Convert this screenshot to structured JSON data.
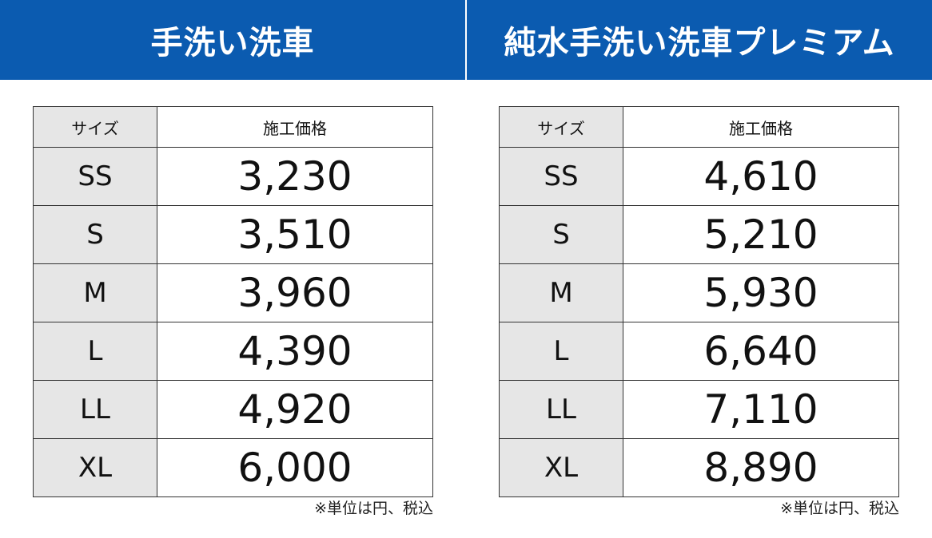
{
  "panels": [
    {
      "title": "手洗い洗車",
      "table": {
        "header": [
          "サイズ",
          "施工価格"
        ],
        "rows": [
          [
            "SS",
            "3,230"
          ],
          [
            "S",
            "3,510"
          ],
          [
            "M",
            "3,960"
          ],
          [
            "L",
            "4,390"
          ],
          [
            "LL",
            "4,920"
          ],
          [
            "XL",
            "6,000"
          ]
        ]
      },
      "note": "※単位は円、税込"
    },
    {
      "title": "純水手洗い洗車プレミアム",
      "table": {
        "header": [
          "サイズ",
          "施工価格"
        ],
        "rows": [
          [
            "SS",
            "4,610"
          ],
          [
            "S",
            "5,210"
          ],
          [
            "M",
            "5,930"
          ],
          [
            "L",
            "6,640"
          ],
          [
            "LL",
            "7,110"
          ],
          [
            "XL",
            "8,890"
          ]
        ]
      },
      "note": "※単位は円、税込"
    }
  ]
}
